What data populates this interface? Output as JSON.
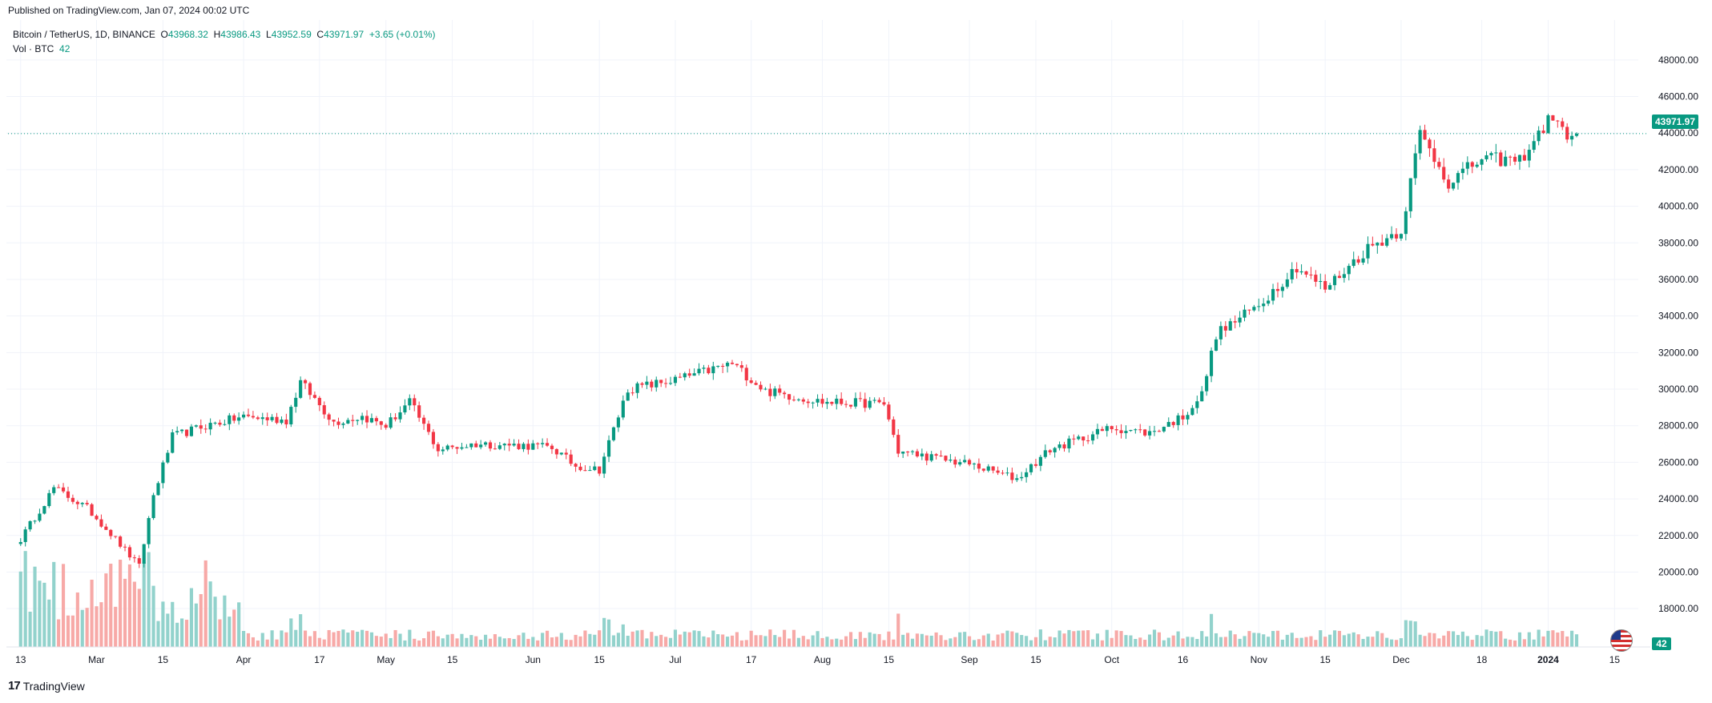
{
  "published": "Published on TradingView.com, Jan 07, 2024 00:02 UTC",
  "legend": {
    "symbol": "Bitcoin / TetherUS, 1D, BINANCE",
    "o_label": "O",
    "o_value": "43968.32",
    "h_label": "H",
    "h_value": "43986.43",
    "l_label": "L",
    "l_value": "43952.59",
    "c_label": "C",
    "c_value": "43971.97",
    "change": "+3.65 (+0.01%)",
    "vol_label": "Vol · BTC",
    "vol_value": "42"
  },
  "last_price_tag": "43971.97",
  "volume_tag": "42",
  "footer_brand": "TradingView",
  "colors": {
    "up": "#089981",
    "down": "#f23645",
    "up_vol": "#92d2cc",
    "down_vol": "#f7a9a7",
    "grid": "#f0f3fa"
  },
  "chart_data": {
    "type": "candlestick",
    "title": "Bitcoin / TetherUS, 1D, BINANCE",
    "ylim": [
      17000,
      49000
    ],
    "y_ticks": [
      "48000.00",
      "46000.00",
      "44000.00",
      "42000.00",
      "40000.00",
      "38000.00",
      "36000.00",
      "34000.00",
      "32000.00",
      "30000.00",
      "28000.00",
      "26000.00",
      "24000.00",
      "22000.00",
      "20000.00",
      "18000.00"
    ],
    "x_ticks": [
      "13",
      "Mar",
      "15",
      "Apr",
      "17",
      "May",
      "15",
      "Jun",
      "15",
      "Jul",
      "17",
      "Aug",
      "15",
      "Sep",
      "15",
      "Oct",
      "16",
      "Nov",
      "15",
      "Dec",
      "18",
      "2024",
      "15"
    ],
    "series_close_keypoints": [
      [
        "2023-02-13",
        21800
      ],
      [
        "2023-02-20",
        24600
      ],
      [
        "2023-02-27",
        23500
      ],
      [
        "2023-03-03",
        22400
      ],
      [
        "2023-03-10",
        20300
      ],
      [
        "2023-03-13",
        24200
      ],
      [
        "2023-03-17",
        27400
      ],
      [
        "2023-03-24",
        28000
      ],
      [
        "2023-04-01",
        28500
      ],
      [
        "2023-04-10",
        28300
      ],
      [
        "2023-04-13",
        30400
      ],
      [
        "2023-04-20",
        28200
      ],
      [
        "2023-04-26",
        28500
      ],
      [
        "2023-05-01",
        28000
      ],
      [
        "2023-05-06",
        29300
      ],
      [
        "2023-05-12",
        26700
      ],
      [
        "2023-05-20",
        27000
      ],
      [
        "2023-06-01",
        26900
      ],
      [
        "2023-06-05",
        26800
      ],
      [
        "2023-06-10",
        25800
      ],
      [
        "2023-06-15",
        25600
      ],
      [
        "2023-06-21",
        30000
      ],
      [
        "2023-07-01",
        30500
      ],
      [
        "2023-07-13",
        31400
      ],
      [
        "2023-07-20",
        29900
      ],
      [
        "2023-08-01",
        29300
      ],
      [
        "2023-08-14",
        29200
      ],
      [
        "2023-08-17",
        26600
      ],
      [
        "2023-09-01",
        25900
      ],
      [
        "2023-09-11",
        25100
      ],
      [
        "2023-09-18",
        26700
      ],
      [
        "2023-10-01",
        27900
      ],
      [
        "2023-10-09",
        27600
      ],
      [
        "2023-10-16",
        28500
      ],
      [
        "2023-10-20",
        29700
      ],
      [
        "2023-10-23",
        33000
      ],
      [
        "2023-11-01",
        34600
      ],
      [
        "2023-11-09",
        36700
      ],
      [
        "2023-11-15",
        35500
      ],
      [
        "2023-11-24",
        37700
      ],
      [
        "2023-12-01",
        38700
      ],
      [
        "2023-12-05",
        44000
      ],
      [
        "2023-12-11",
        41300
      ],
      [
        "2023-12-18",
        42600
      ],
      [
        "2023-12-26",
        42500
      ],
      [
        "2024-01-02",
        45000
      ],
      [
        "2024-01-04",
        44000
      ],
      [
        "2024-01-07",
        43972
      ]
    ]
  }
}
